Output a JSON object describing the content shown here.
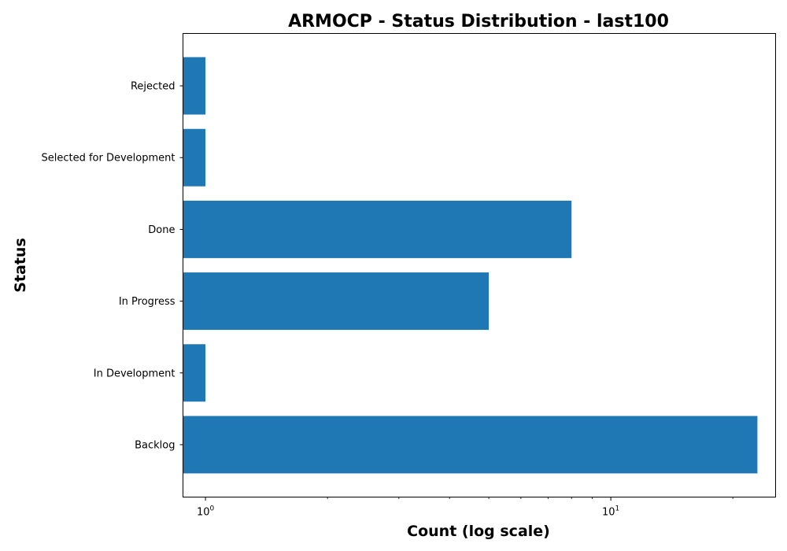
{
  "chart_data": {
    "type": "bar",
    "orientation": "horizontal",
    "title": "ARMOCP - Status Distribution - last100",
    "xlabel": "Count (log scale)",
    "ylabel": "Status",
    "xscale": "log",
    "xlim": [
      0.88,
      25.5
    ],
    "categories": [
      "Backlog",
      "In Development",
      "In Progress",
      "Done",
      "Selected for Development",
      "Rejected"
    ],
    "values": [
      23,
      1,
      5,
      8,
      1,
      1
    ],
    "x_ticks": [
      {
        "value": 1,
        "base": "10",
        "exp": "0"
      },
      {
        "value": 10,
        "base": "10",
        "exp": "1"
      }
    ],
    "bar_color": "#1f77b4",
    "grid": false,
    "legend": "none"
  }
}
